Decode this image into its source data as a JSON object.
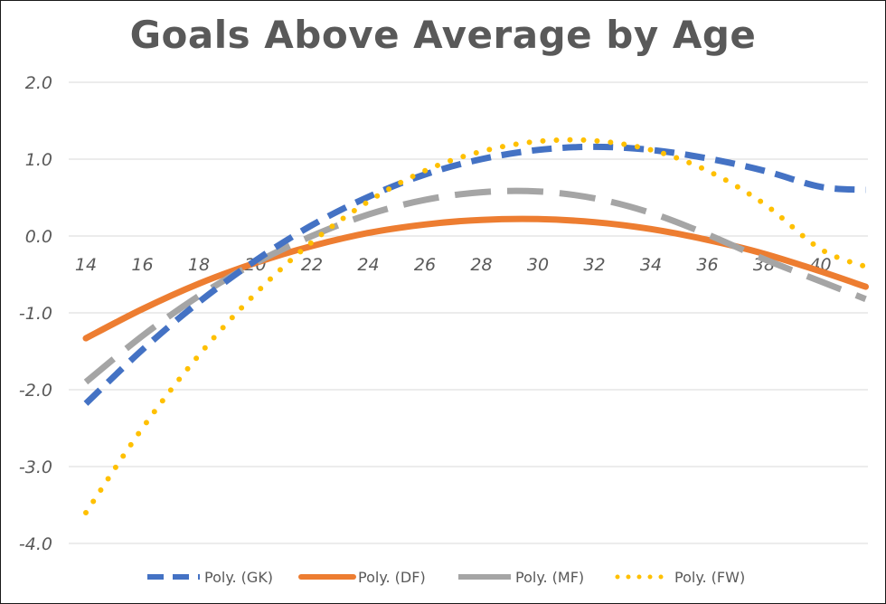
{
  "chart_data": {
    "type": "line",
    "title": "Goals Above Average by Age",
    "xlabel": "",
    "ylabel": "",
    "x_ticks": [
      "14",
      "16",
      "18",
      "20",
      "22",
      "24",
      "26",
      "28",
      "30",
      "32",
      "34",
      "36",
      "38",
      "40"
    ],
    "y_ticks": [
      "2.0",
      "1.0",
      "0.0",
      "-1.0",
      "-2.0",
      "-3.0",
      "-4.0"
    ],
    "xlim": [
      14,
      41.6
    ],
    "ylim": [
      -4,
      2
    ],
    "grid": "horizontal",
    "legend_position": "bottom",
    "series": [
      {
        "name": "Poly. (GK)",
        "color": "#4472C4",
        "dash": "dashed",
        "x": [
          14,
          16,
          18,
          20,
          22,
          24,
          26,
          28,
          30,
          32,
          34,
          36,
          38,
          40,
          41.6
        ],
        "y": [
          -2.18,
          -1.48,
          -0.86,
          -0.32,
          0.14,
          0.51,
          0.8,
          1.0,
          1.12,
          1.16,
          1.12,
          1.01,
          0.85,
          0.64,
          0.6
        ]
      },
      {
        "name": "Poly. (DF)",
        "color": "#ED7D31",
        "dash": "solid",
        "x": [
          14,
          16,
          18,
          20,
          22,
          24,
          26,
          28,
          30,
          32,
          34,
          36,
          38,
          40,
          41.6
        ],
        "y": [
          -1.33,
          -0.95,
          -0.62,
          -0.35,
          -0.13,
          0.04,
          0.15,
          0.21,
          0.22,
          0.18,
          0.09,
          -0.05,
          -0.23,
          -0.46,
          -0.66
        ]
      },
      {
        "name": "Poly. (MF)",
        "color": "#A5A5A5",
        "dash": "longdash",
        "x": [
          14,
          16,
          18,
          20,
          22,
          24,
          26,
          28,
          30,
          32,
          34,
          36,
          38,
          40,
          41.6
        ],
        "y": [
          -1.9,
          -1.3,
          -0.78,
          -0.35,
          0.0,
          0.28,
          0.47,
          0.57,
          0.58,
          0.49,
          0.3,
          0.02,
          -0.3,
          -0.59,
          -0.82
        ]
      },
      {
        "name": "Poly. (FW)",
        "color": "#FFC000",
        "dash": "dotted",
        "x": [
          14,
          16,
          18,
          20,
          22,
          24,
          26,
          28,
          30,
          32,
          34,
          36,
          38,
          40,
          41.6
        ],
        "y": [
          -3.6,
          -2.5,
          -1.55,
          -0.75,
          -0.08,
          0.45,
          0.85,
          1.1,
          1.23,
          1.24,
          1.12,
          0.85,
          0.42,
          -0.17,
          -0.4
        ]
      }
    ]
  }
}
